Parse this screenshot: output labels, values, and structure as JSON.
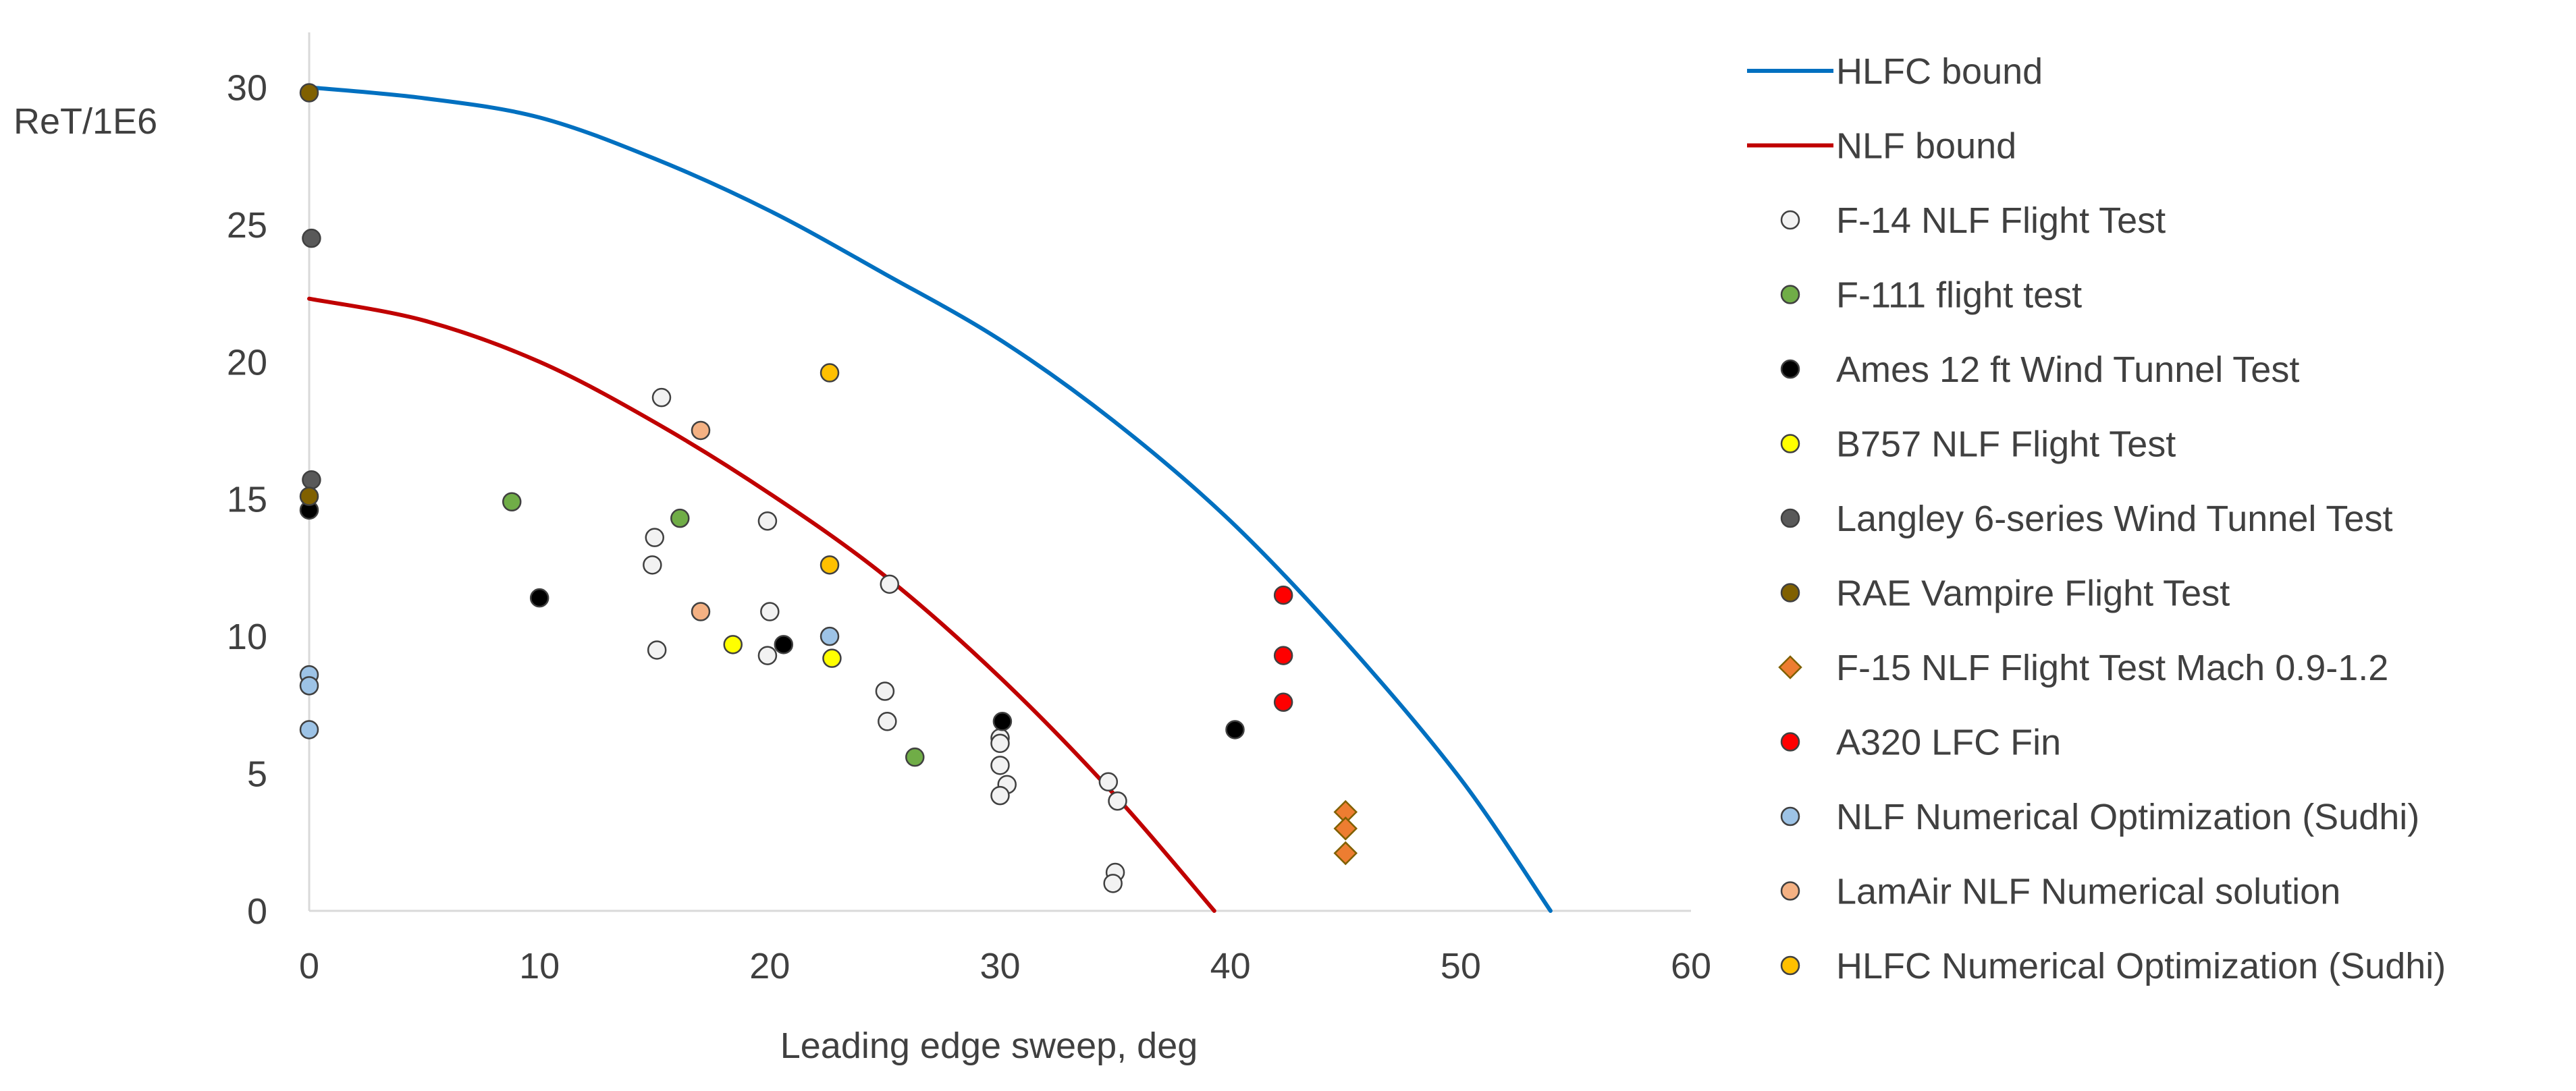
{
  "chart_data": {
    "type": "scatter",
    "title": "",
    "xlabel": "Leading edge sweep, deg",
    "ylabel": "ReT/1E6",
    "xlim": [
      0,
      60
    ],
    "ylim": [
      0,
      32
    ],
    "xticks": [
      0,
      10,
      20,
      30,
      40,
      50,
      60
    ],
    "yticks": [
      0,
      5,
      10,
      15,
      20,
      25,
      30
    ],
    "xtick_labels": [
      "0",
      "10",
      "20",
      "30",
      "40",
      "50",
      "60"
    ],
    "ytick_labels": [
      "0",
      "5",
      "10",
      "15",
      "20",
      "25",
      "30"
    ],
    "grid": false,
    "legend_position": "right",
    "series": [
      {
        "name": "HLFC bound",
        "kind": "line",
        "color": "#0070C0",
        "points": [
          [
            0,
            30
          ],
          [
            5,
            29.6
          ],
          [
            10,
            28.9
          ],
          [
            15,
            27.4
          ],
          [
            20,
            25.5
          ],
          [
            25,
            23.2
          ],
          [
            30,
            20.8
          ],
          [
            35,
            17.8
          ],
          [
            40,
            14.2
          ],
          [
            45,
            9.8
          ],
          [
            50,
            4.8
          ],
          [
            53.9,
            0
          ]
        ]
      },
      {
        "name": "NLF bound",
        "kind": "line",
        "color": "#C00000",
        "points": [
          [
            0,
            22.3
          ],
          [
            5,
            21.5
          ],
          [
            10,
            20.0
          ],
          [
            15,
            17.8
          ],
          [
            20,
            15.2
          ],
          [
            25,
            12.2
          ],
          [
            30,
            8.5
          ],
          [
            35,
            4.2
          ],
          [
            39.3,
            0
          ]
        ]
      },
      {
        "name": "F-14 NLF Flight Test",
        "kind": "scatter",
        "marker": "circle",
        "color": "#F2F2F2",
        "points": [
          [
            15.3,
            18.7
          ],
          [
            15,
            13.6
          ],
          [
            14.9,
            12.6
          ],
          [
            15.1,
            9.5
          ],
          [
            19.9,
            14.2
          ],
          [
            20,
            10.9
          ],
          [
            19.9,
            9.3
          ],
          [
            25.2,
            11.9
          ],
          [
            25,
            8.0
          ],
          [
            25.1,
            6.9
          ],
          [
            30,
            6.3
          ],
          [
            30,
            6.1
          ],
          [
            30,
            5.3
          ],
          [
            30.3,
            4.6
          ],
          [
            30,
            4.2
          ],
          [
            34.7,
            4.7
          ],
          [
            35.1,
            4.0
          ],
          [
            35,
            1.4
          ],
          [
            34.9,
            1.0
          ]
        ]
      },
      {
        "name": "F-111 flight test",
        "kind": "scatter",
        "marker": "circle",
        "color": "#70AD47",
        "points": [
          [
            8.8,
            14.9
          ],
          [
            16.1,
            14.3
          ],
          [
            26.3,
            5.6
          ]
        ]
      },
      {
        "name": "Ames 12 ft Wind Tunnel Test",
        "kind": "scatter",
        "marker": "circle",
        "color": "#000000",
        "points": [
          [
            0,
            14.6
          ],
          [
            10,
            11.4
          ],
          [
            20.6,
            9.7
          ],
          [
            30.1,
            6.9
          ],
          [
            40.2,
            6.6
          ]
        ]
      },
      {
        "name": "B757 NLF Flight Test",
        "kind": "scatter",
        "marker": "circle",
        "color": "#FFFF00",
        "points": [
          [
            18.4,
            9.7
          ],
          [
            22.7,
            9.2
          ]
        ]
      },
      {
        "name": "Langley 6-series Wind Tunnel Test",
        "kind": "scatter",
        "marker": "circle",
        "color": "#595959",
        "points": [
          [
            0.1,
            24.5
          ],
          [
            0.1,
            15.7
          ]
        ]
      },
      {
        "name": "RAE Vampire Flight Test",
        "kind": "scatter",
        "marker": "circle",
        "color": "#806000",
        "points": [
          [
            0,
            29.8
          ],
          [
            0,
            15.1
          ]
        ]
      },
      {
        "name": "F-15 NLF Flight Test Mach 0.9-1.2",
        "kind": "scatter",
        "marker": "diamond",
        "color": "#ED7D31",
        "points": [
          [
            45,
            3.6
          ],
          [
            45,
            3.0
          ],
          [
            45,
            2.1
          ]
        ]
      },
      {
        "name": "A320 LFC Fin",
        "kind": "scatter",
        "marker": "circle",
        "color": "#FF0000",
        "points": [
          [
            42.3,
            11.5
          ],
          [
            42.3,
            9.3
          ],
          [
            42.3,
            7.6
          ]
        ]
      },
      {
        "name": "NLF Numerical Optimization (Sudhi)",
        "kind": "scatter",
        "marker": "circle",
        "color": "#9DC3E6",
        "points": [
          [
            0,
            8.6
          ],
          [
            0,
            8.2
          ],
          [
            0,
            6.6
          ],
          [
            22.6,
            10.0
          ]
        ]
      },
      {
        "name": "LamAir NLF Numerical solution",
        "kind": "scatter",
        "marker": "circle",
        "color": "#F4B183",
        "points": [
          [
            17,
            17.5
          ],
          [
            17,
            10.9
          ]
        ]
      },
      {
        "name": "HLFC Numerical Optimization (Sudhi)",
        "kind": "scatter",
        "marker": "circle",
        "color": "#FFC000",
        "points": [
          [
            22.6,
            19.6
          ],
          [
            22.6,
            12.6
          ]
        ]
      }
    ]
  }
}
